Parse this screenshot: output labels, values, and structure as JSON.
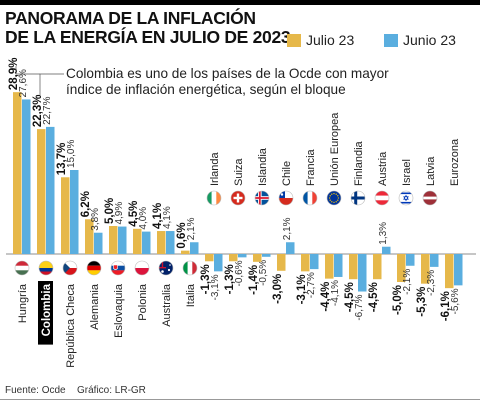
{
  "title_line1": "PANORAMA DE LA INFLACIÓN",
  "title_line2": "DE LA ENERGÍA EN JULIO DE 2023",
  "note_line1": "Colombia es uno de los países de la Ocde con mayor",
  "note_line2": "índice de inflación energética, según el bloque",
  "source": "Fuente: Ocde",
  "graphic": "Gráfico: LR-GR",
  "colors": {
    "julio": "#e6b84a",
    "junio": "#5aaedf",
    "highlight": "#000000"
  },
  "chart_data": {
    "type": "bar",
    "legend_position": "top-right",
    "categories": [
      "Hungría",
      "Colombia",
      "República Checa",
      "Alemania",
      "Eslovaquia",
      "Polonia",
      "Australia",
      "Italia",
      "Irlanda",
      "Suiza",
      "Islandia",
      "Chile",
      "Francia",
      "Unión Europea",
      "Finlandia",
      "Austria",
      "Israel",
      "Latvia",
      "Eurozona"
    ],
    "series": [
      {
        "name": "Julio 23",
        "values": [
          28.9,
          22.3,
          13.7,
          6.2,
          5.0,
          4.5,
          4.1,
          0.6,
          -1.3,
          -1.3,
          -1.4,
          -3.0,
          -3.1,
          -4.4,
          -4.5,
          -4.5,
          -5.0,
          -5.3,
          -6.1
        ],
        "labels": [
          "28,9%",
          "22,3%",
          "13,7%",
          "6,2%",
          "5,0%",
          "4,5%",
          "4,1%",
          "0,6%",
          "-1,3%",
          "-1,3%",
          "-1,4%",
          "-3,0%",
          "-3,1%",
          "-4,4%",
          "-4,5%",
          "-4,5%",
          "-5,0%",
          "-5,3%",
          "-6,1%"
        ]
      },
      {
        "name": "Junio 23",
        "values": [
          27.6,
          22.7,
          15.0,
          3.8,
          4.9,
          4.0,
          4.1,
          2.1,
          -3.1,
          -0.6,
          -0.5,
          2.1,
          -2.7,
          -4.1,
          -6.7,
          1.3,
          -2.1,
          -2.3,
          -5.6
        ],
        "labels": [
          "27,6%",
          "22,7%",
          "15,0%",
          "3,8%",
          "4,9%",
          "4,0%",
          "4,1%",
          "2,1%",
          "-3,1%",
          "-0,6%",
          "-0,5%",
          "2,1%",
          "-2,7%",
          "-4,1%",
          "-6,7%",
          "1,3%",
          "-2,1%",
          "-2,3%",
          "-5,6%"
        ]
      }
    ],
    "highlight_category": "Colombia",
    "flags": [
      "hungary-flag-icon",
      "colombia-flag-icon",
      "czech-flag-icon",
      "germany-flag-icon",
      "slovakia-flag-icon",
      "poland-flag-icon",
      "australia-flag-icon",
      "italy-flag-icon",
      "ireland-flag-icon",
      "switzerland-flag-icon",
      "iceland-flag-icon",
      "chile-flag-icon",
      "france-flag-icon",
      "eu-flag-icon",
      "finland-flag-icon",
      "austria-flag-icon",
      "israel-flag-icon",
      "latvia-flag-icon",
      "eurozone-flag-icon"
    ]
  }
}
